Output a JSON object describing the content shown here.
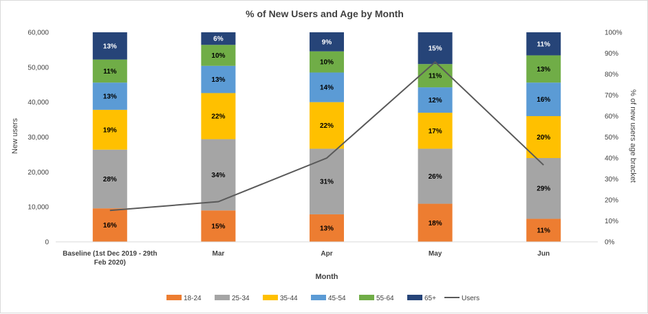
{
  "chart_data": {
    "type": "bar",
    "stacked": true,
    "title": "% of New Users and Age by Month",
    "xlabel": "Month",
    "ylabel": "New users",
    "y2label": "% of new users age bracket",
    "ylim": [
      0,
      60000
    ],
    "y2lim": [
      0,
      1
    ],
    "y_ticks": [
      "0",
      "10,000",
      "20,000",
      "30,000",
      "40,000",
      "50,000",
      "60,000"
    ],
    "y2_ticks": [
      "0%",
      "10%",
      "20%",
      "30%",
      "40%",
      "50%",
      "60%",
      "70%",
      "80%",
      "90%",
      "100%"
    ],
    "categories": [
      [
        "Baseline (1st Dec 2019 - 29th",
        "Feb 2020)"
      ],
      [
        "Mar"
      ],
      [
        "Apr"
      ],
      [
        "May"
      ],
      [
        "Jun"
      ]
    ],
    "series": [
      {
        "name": "18-24",
        "color": "#ED7D31",
        "label_color": "#000000",
        "values": [
          16,
          15,
          13,
          18,
          11
        ]
      },
      {
        "name": "25-34",
        "color": "#A5A5A5",
        "label_color": "#000000",
        "values": [
          28,
          34,
          31,
          26,
          29
        ]
      },
      {
        "name": "35-44",
        "color": "#FFC000",
        "label_color": "#000000",
        "values": [
          19,
          22,
          22,
          17,
          20
        ]
      },
      {
        "name": "45-54",
        "color": "#5B9BD5",
        "label_color": "#000000",
        "values": [
          13,
          13,
          14,
          12,
          16
        ]
      },
      {
        "name": "55-64",
        "color": "#70AD47",
        "label_color": "#000000",
        "values": [
          11,
          10,
          10,
          11,
          13
        ]
      },
      {
        "name": "65+",
        "color": "#264478",
        "label_color": "#ffffff",
        "values": [
          13,
          6,
          9,
          15,
          11
        ]
      }
    ],
    "line": {
      "name": "Users",
      "color": "#595959",
      "values": [
        9000,
        11500,
        24000,
        51500,
        22000
      ]
    },
    "legend_position": "bottom",
    "grid": false
  }
}
